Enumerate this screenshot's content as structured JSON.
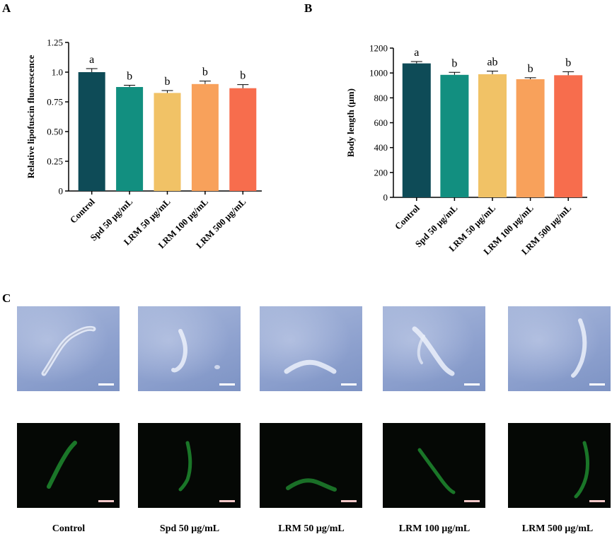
{
  "panels": {
    "a": "A",
    "b": "B",
    "c": "C"
  },
  "chart_data": [
    {
      "type": "bar",
      "panel": "A",
      "ylabel": "Relative lipofuscin fluorescence",
      "categories": [
        "Control",
        "Spd 50 μg/mL",
        "LRM 50 μg/mL",
        "LRM 100 μg/mL",
        "LRM 500 μg/mL"
      ],
      "values": [
        1.0,
        0.875,
        0.825,
        0.9,
        0.865
      ],
      "errors": [
        0.03,
        0.015,
        0.02,
        0.025,
        0.03
      ],
      "significance": [
        "a",
        "b",
        "b",
        "b",
        "b"
      ],
      "colors": [
        "#0e4b57",
        "#128f80",
        "#f1c266",
        "#f8a15b",
        "#f76d4d"
      ],
      "ylim": [
        0,
        1.25
      ],
      "yticks": [
        "0",
        "0.25",
        "0.50",
        "0.75",
        "1.0",
        "1.25"
      ]
    },
    {
      "type": "bar",
      "panel": "B",
      "ylabel": "Body length (μm)",
      "categories": [
        "Control",
        "Spd 50 μg/mL",
        "LRM 50 μg/mL",
        "LRM 100 μg/mL",
        "LRM 500 μg/mL"
      ],
      "values": [
        1077,
        985,
        990,
        950,
        982
      ],
      "errors": [
        15,
        20,
        25,
        12,
        28
      ],
      "significance": [
        "a",
        "b",
        "ab",
        "b",
        "b"
      ],
      "colors": [
        "#0e4b57",
        "#128f80",
        "#f1c266",
        "#f8a15b",
        "#f76d4d"
      ],
      "ylim": [
        0,
        1200
      ],
      "yticks": [
        "0",
        "200",
        "400",
        "600",
        "800",
        "1000",
        "1200"
      ]
    }
  ],
  "micrographs": {
    "labels": [
      "Control",
      "Spd 50 μg/mL",
      "LRM 50 μg/mL",
      "LRM 100 μg/mL",
      "LRM 500 μg/mL"
    ]
  }
}
